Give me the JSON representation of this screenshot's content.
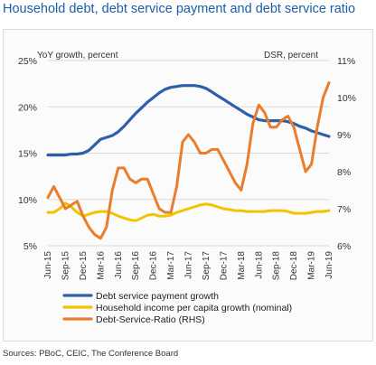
{
  "title": "Household debt, debt service payment and debt service ratio",
  "source": "Sources: PBoC, CEIC, The Conference Board",
  "colors": {
    "title": "#1a5ea8",
    "series": [
      "#2e5fa8",
      "#f2c400",
      "#ea7d2c"
    ],
    "grid": "#d9d9d9"
  },
  "chart_data": {
    "type": "line",
    "left_axis_label": "YoY growth, percent",
    "right_axis_label": "DSR, percent",
    "left_ticks": [
      "25%",
      "20%",
      "15%",
      "10%",
      "5%"
    ],
    "right_ticks": [
      "11%",
      "10%",
      "9%",
      "8%",
      "7%",
      "6%"
    ],
    "ylim_left": [
      5,
      25
    ],
    "ylim_right": [
      6,
      11
    ],
    "grid": true,
    "legend_position": "bottom",
    "x_tick_labels": [
      "Jun-15",
      "Sep-15",
      "Dec-15",
      "Mar-16",
      "Jun-16",
      "Sep-16",
      "Dec-16",
      "Mar-17",
      "Jun-17",
      "Sep-17",
      "Dec-17",
      "Mar-18",
      "Jun-18",
      "Sep-18",
      "Dec-18",
      "Mar-19",
      "Jun-19"
    ],
    "x": [
      "Jun-15",
      "Jul-15",
      "Aug-15",
      "Sep-15",
      "Oct-15",
      "Nov-15",
      "Dec-15",
      "Jan-16",
      "Feb-16",
      "Mar-16",
      "Apr-16",
      "May-16",
      "Jun-16",
      "Jul-16",
      "Aug-16",
      "Sep-16",
      "Oct-16",
      "Nov-16",
      "Dec-16",
      "Jan-17",
      "Feb-17",
      "Mar-17",
      "Apr-17",
      "May-17",
      "Jun-17",
      "Jul-17",
      "Aug-17",
      "Sep-17",
      "Oct-17",
      "Nov-17",
      "Dec-17",
      "Jan-18",
      "Feb-18",
      "Mar-18",
      "Apr-18",
      "May-18",
      "Jun-18",
      "Jul-18",
      "Aug-18",
      "Sep-18",
      "Oct-18",
      "Nov-18",
      "Dec-18",
      "Jan-19",
      "Feb-19",
      "Mar-19",
      "Apr-19",
      "May-19",
      "Jun-19"
    ],
    "series": [
      {
        "name": "Debt service payment growth",
        "axis": "left",
        "values": [
          14.8,
          14.8,
          14.8,
          14.8,
          14.9,
          14.9,
          15.0,
          15.3,
          15.9,
          16.5,
          16.7,
          16.9,
          17.3,
          17.9,
          18.6,
          19.3,
          19.9,
          20.5,
          21.0,
          21.5,
          21.9,
          22.1,
          22.2,
          22.3,
          22.3,
          22.3,
          22.2,
          22.0,
          21.6,
          21.2,
          20.8,
          20.4,
          20.0,
          19.6,
          19.2,
          18.9,
          18.6,
          18.5,
          18.5,
          18.5,
          18.5,
          18.4,
          18.2,
          17.9,
          17.7,
          17.4,
          17.2,
          17.0,
          16.8
        ]
      },
      {
        "name": "Household income per capita growth (nominal)",
        "axis": "left",
        "values": [
          8.6,
          8.6,
          9.0,
          9.6,
          9.2,
          8.6,
          8.2,
          8.4,
          8.6,
          8.7,
          8.7,
          8.5,
          8.2,
          8.0,
          7.8,
          7.7,
          8.0,
          8.3,
          8.4,
          8.2,
          8.2,
          8.3,
          8.6,
          8.8,
          9.0,
          9.2,
          9.4,
          9.5,
          9.4,
          9.2,
          9.0,
          8.9,
          8.8,
          8.8,
          8.7,
          8.7,
          8.7,
          8.7,
          8.8,
          8.8,
          8.8,
          8.7,
          8.5,
          8.5,
          8.5,
          8.6,
          8.7,
          8.7,
          8.8
        ]
      },
      {
        "name": "Debt-Service-Ratio (RHS)",
        "axis": "right",
        "values": [
          7.3,
          7.6,
          7.3,
          7.0,
          7.1,
          7.2,
          6.8,
          6.5,
          6.3,
          6.2,
          6.5,
          7.5,
          8.1,
          8.1,
          7.8,
          7.7,
          7.8,
          7.8,
          7.4,
          7.0,
          6.9,
          6.9,
          7.6,
          8.8,
          9.0,
          8.8,
          8.5,
          8.5,
          8.6,
          8.6,
          8.3,
          8.0,
          7.7,
          7.5,
          8.2,
          9.3,
          9.8,
          9.6,
          9.2,
          9.2,
          9.4,
          9.5,
          9.2,
          8.6,
          8.0,
          8.2,
          9.2,
          10.0,
          10.4
        ]
      }
    ]
  }
}
